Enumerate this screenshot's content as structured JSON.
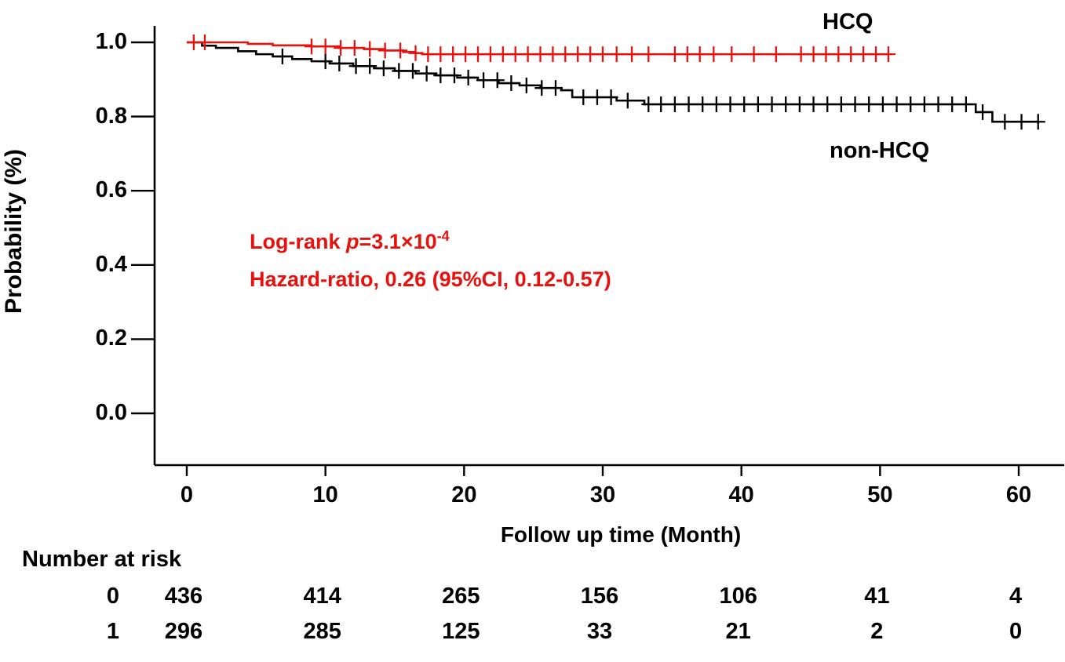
{
  "figure": {
    "background": "#ffffff",
    "curve_labels": {
      "hcq": "HCQ",
      "non_hcq": "non-HCQ"
    },
    "annotations": {
      "log_rank_prefix": "Log-rank ",
      "log_rank_p": "p",
      "log_rank_eq": "=3.1×10",
      "log_rank_exp": "-4",
      "hazard_ratio": "Hazard-ratio, 0.26 (95%CI, 0.12-0.57)"
    },
    "x_axis": {
      "label": "Follow up time (Month)",
      "tick_labels": [
        "0",
        "10",
        "20",
        "30",
        "40",
        "50",
        "60"
      ],
      "tick_values": [
        0,
        10,
        20,
        30,
        40,
        50,
        60
      ]
    },
    "y_axis": {
      "label": "Probability (%)",
      "tick_labels": [
        "1.0",
        "0.8",
        "0.6",
        "0.4",
        "0.2",
        "0.0"
      ],
      "tick_values": [
        1.0,
        0.8,
        0.6,
        0.4,
        0.2,
        0.0
      ]
    },
    "risk_table": {
      "title": "Number at risk",
      "time_points": [
        0,
        10,
        20,
        30,
        40,
        50,
        60
      ],
      "rows": [
        {
          "group": "0",
          "values": [
            "436",
            "414",
            "265",
            "156",
            "106",
            "41",
            "4"
          ]
        },
        {
          "group": "1",
          "values": [
            "296",
            "285",
            "125",
            "33",
            "21",
            "2",
            "0"
          ]
        }
      ]
    }
  },
  "chart_data": {
    "type": "line",
    "subtype": "kaplan-meier-step",
    "xlabel": "Follow up time (Month)",
    "ylabel": "Probability (%)",
    "xlim": [
      0,
      62
    ],
    "ylim": [
      0.0,
      1.0
    ],
    "x_ticks": [
      0,
      10,
      20,
      30,
      40,
      50,
      60
    ],
    "y_ticks": [
      0.0,
      0.2,
      0.4,
      0.6,
      0.8,
      1.0
    ],
    "grid": false,
    "legend_position": "inline-labels",
    "axis_color": "#000000",
    "log_rank_p": "3.1e-4",
    "hazard_ratio": 0.26,
    "hazard_ratio_ci_95": [
      0.12,
      0.57
    ],
    "series": [
      {
        "name": "non-HCQ",
        "group_code": "0",
        "color": "#000000",
        "steps": [
          [
            0,
            1.0
          ],
          [
            1.1,
            0.991
          ],
          [
            2.1,
            0.985
          ],
          [
            3.7,
            0.976
          ],
          [
            5.0,
            0.968
          ],
          [
            6.2,
            0.962
          ],
          [
            7.6,
            0.955
          ],
          [
            9.0,
            0.949
          ],
          [
            10.3,
            0.943
          ],
          [
            12.0,
            0.936
          ],
          [
            13.5,
            0.93
          ],
          [
            15.0,
            0.923
          ],
          [
            16.5,
            0.916
          ],
          [
            18.0,
            0.911
          ],
          [
            19.5,
            0.905
          ],
          [
            21.0,
            0.898
          ],
          [
            22.5,
            0.89
          ],
          [
            24.0,
            0.884
          ],
          [
            25.5,
            0.877
          ],
          [
            27.0,
            0.871
          ],
          [
            27.8,
            0.852
          ],
          [
            31.0,
            0.843
          ],
          [
            33.0,
            0.833
          ],
          [
            56.9,
            0.812
          ],
          [
            58.1,
            0.786
          ],
          [
            61.5,
            0.786
          ]
        ],
        "censor_times": [
          6.9,
          10.0,
          11.0,
          12.2,
          13.2,
          14.2,
          15.3,
          16.3,
          17.3,
          18.3,
          19.3,
          20.3,
          21.4,
          22.4,
          23.4,
          24.5,
          25.6,
          26.6,
          28.6,
          29.6,
          30.6,
          31.8,
          33.3,
          34.2,
          35.2,
          36.2,
          37.2,
          38.2,
          39.2,
          40.2,
          41.2,
          42.2,
          43.2,
          44.2,
          45.2,
          46.2,
          47.2,
          48.2,
          49.2,
          50.2,
          51.2,
          52.2,
          53.2,
          54.2,
          55.2,
          56.2,
          57.4,
          59.0,
          60.2,
          61.4
        ]
      },
      {
        "name": "HCQ",
        "group_code": "1",
        "color": "#e8110d",
        "steps": [
          [
            0,
            1.0
          ],
          [
            4.4,
            0.996
          ],
          [
            6.2,
            0.992
          ],
          [
            9.0,
            0.989
          ],
          [
            11.0,
            0.985
          ],
          [
            12.8,
            0.982
          ],
          [
            14.3,
            0.978
          ],
          [
            15.6,
            0.974
          ],
          [
            16.4,
            0.971
          ],
          [
            17.0,
            0.968
          ],
          [
            50.6,
            0.968
          ]
        ],
        "censor_times": [
          0.5,
          1.3,
          9.0,
          10.0,
          11.1,
          12.1,
          13.2,
          14.3,
          15.4,
          16.5,
          17.4,
          18.3,
          19.2,
          20.1,
          21.0,
          21.9,
          22.8,
          23.7,
          24.6,
          25.5,
          26.4,
          27.3,
          28.2,
          29.1,
          30.0,
          31.0,
          32.1,
          33.3,
          35.2,
          36.1,
          37.0,
          38.0,
          39.3,
          40.9,
          42.5,
          44.3,
          45.2,
          46.1,
          47.0,
          47.9,
          48.8,
          49.7,
          50.6
        ]
      }
    ]
  }
}
